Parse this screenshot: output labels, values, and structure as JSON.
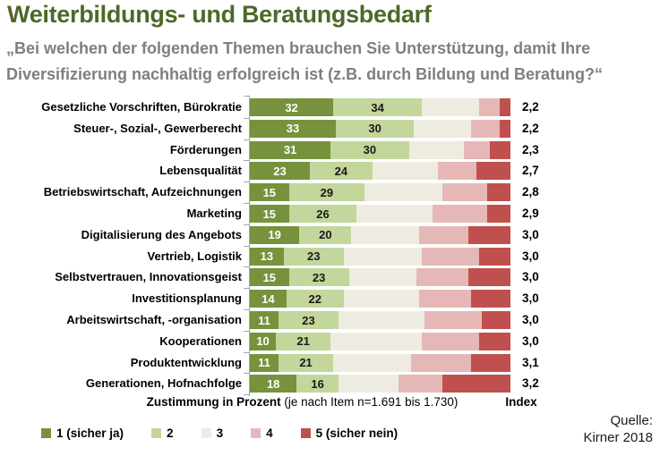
{
  "header": {
    "title": "Weiterbildungs- und Beratungsbedarf",
    "subtitle_line1": "„Bei welchen der folgenden Themen brauchen Sie Unterstützung, damit Ihre",
    "subtitle_line2": "Diversifizierung nachhaltig erfolgreich ist (z.B. durch Bildung und Beratung?“"
  },
  "chart_data": {
    "type": "bar",
    "orientation": "horizontal",
    "stacked": true,
    "unit": "percent",
    "xlim": [
      0,
      100
    ],
    "grid": false,
    "legend_position": "bottom",
    "categories": [
      "Gesetzliche Vorschriften, Bürokratie",
      "Steuer-, Sozial-, Gewerberecht",
      "Förderungen",
      "Lebensqualität",
      "Betriebswirtschaft, Aufzeichnungen",
      "Marketing",
      "Digitalisierung des Angebots",
      "Vertrieb, Logistik",
      "Selbstvertrauen, Innovationsgeist",
      "Investitionsplanung",
      "Arbeitswirtschaft, -organisation",
      "Kooperationen",
      "Produktentwicklung",
      "Generationen, Hofnachfolge"
    ],
    "series": [
      {
        "name": "1 (sicher ja)",
        "color": "#76923c",
        "labels_shown": true,
        "label_color": "#ffffff",
        "values": [
          32,
          33,
          31,
          23,
          15,
          15,
          19,
          13,
          15,
          14,
          11,
          10,
          11,
          18
        ]
      },
      {
        "name": "2",
        "color": "#c3d69b",
        "labels_shown": true,
        "label_color": "#1a1a1a",
        "values": [
          34,
          30,
          30,
          24,
          29,
          26,
          20,
          23,
          23,
          22,
          23,
          21,
          21,
          16
        ]
      },
      {
        "name": "3",
        "color": "#eeece1",
        "labels_shown": false,
        "estimated": true,
        "values": [
          22,
          22,
          21,
          25,
          30,
          29,
          26,
          30,
          26,
          29,
          33,
          35,
          30,
          23
        ]
      },
      {
        "name": "4",
        "color": "#e5b8b7",
        "labels_shown": false,
        "estimated": true,
        "values": [
          8,
          11,
          10,
          15,
          17,
          21,
          19,
          22,
          20,
          20,
          22,
          22,
          23,
          17
        ]
      },
      {
        "name": "5 (sicher nein)",
        "color": "#c0504d",
        "labels_shown": false,
        "estimated": true,
        "values": [
          4,
          4,
          8,
          13,
          9,
          9,
          16,
          12,
          16,
          15,
          11,
          12,
          15,
          26
        ]
      }
    ],
    "index_values": [
      "2,2",
      "2,2",
      "2,3",
      "2,7",
      "2,8",
      "2,9",
      "3,0",
      "3,0",
      "3,0",
      "3,0",
      "3,0",
      "3,0",
      "3,1",
      "3,2"
    ],
    "xlabel_bold": "Zustimmung in Prozent",
    "xlabel_rest": " (je nach Item n=1.691 bis 1.730)",
    "index_header": "Index",
    "legend": [
      "1 (sicher ja)",
      "2",
      "3",
      "4",
      "5 (sicher nein)"
    ]
  },
  "source": {
    "line1": "Quelle:",
    "line2": "Kirner 2018"
  },
  "colors": {
    "title_green": "#4d682a",
    "subtitle_gray": "#7f7f7f",
    "axis_gray": "#a6a6a6",
    "scale_1": "#76923c",
    "scale_2": "#c3d69b",
    "scale_3": "#eeece1",
    "scale_4": "#e5b8b7",
    "scale_5": "#c0504d"
  }
}
